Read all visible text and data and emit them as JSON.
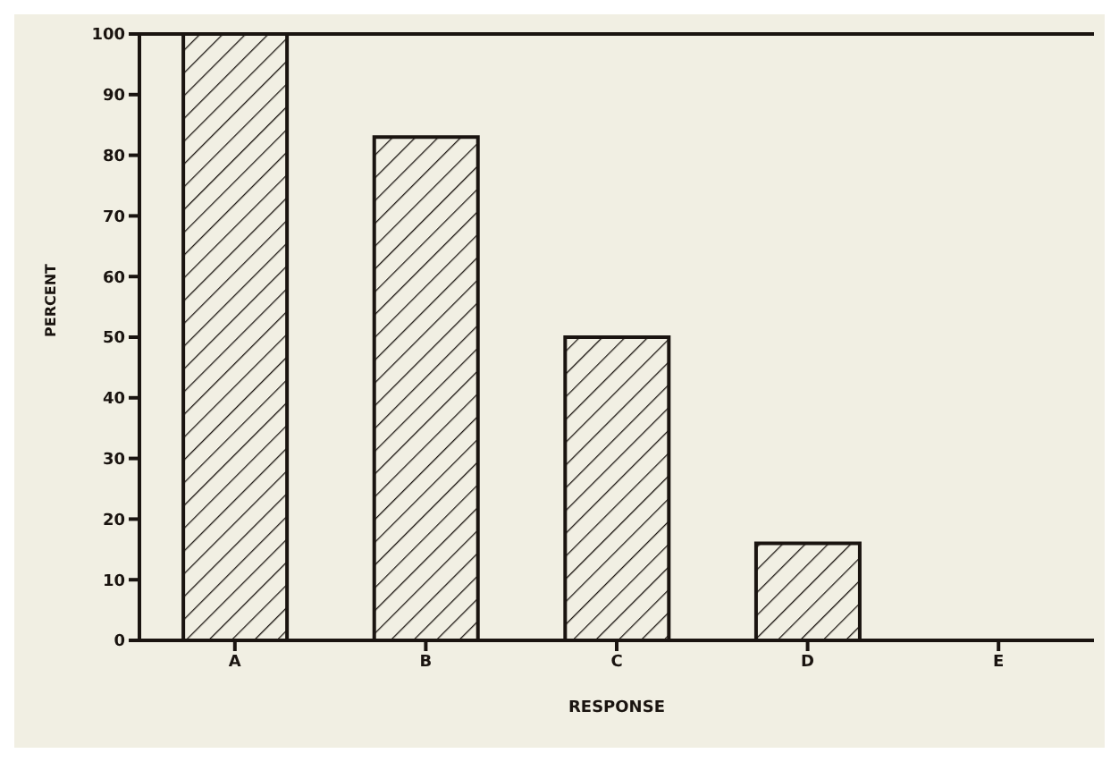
{
  "chart_data": {
    "type": "bar",
    "xlabel": "RESPONSE",
    "ylabel": "PERCENT",
    "categories": [
      "A",
      "B",
      "C",
      "D",
      "E"
    ],
    "values": [
      100,
      83,
      50,
      16,
      0
    ],
    "color": "#1a1410",
    "ylim": [
      0,
      100
    ],
    "yticks": [
      0,
      10,
      20,
      30,
      40,
      50,
      60,
      70,
      80,
      90,
      100
    ]
  }
}
